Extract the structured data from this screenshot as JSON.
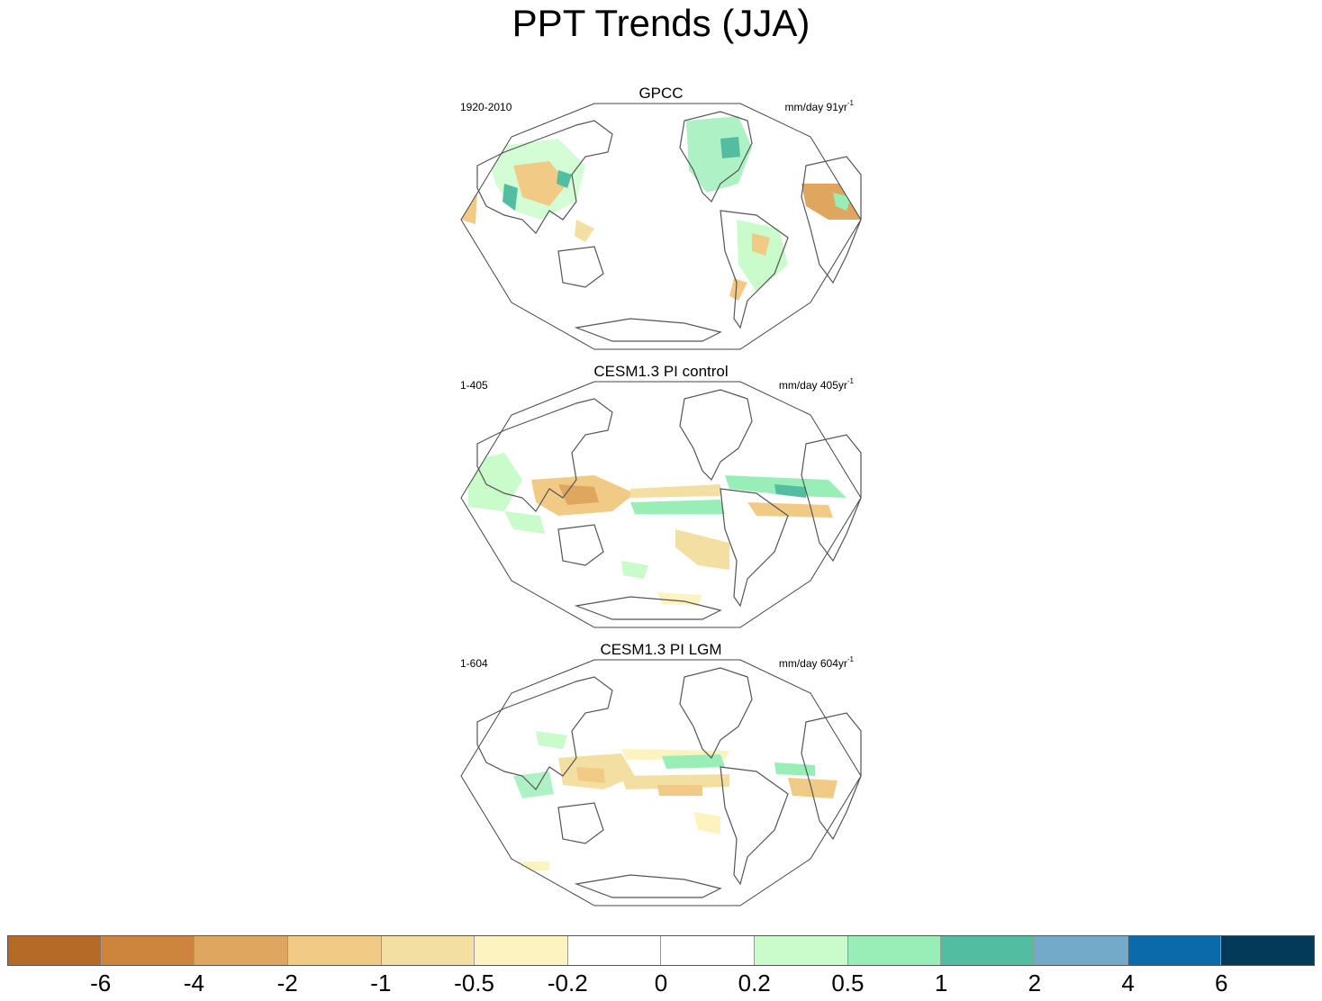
{
  "title": "PPT Trends (JJA)",
  "panels": [
    {
      "title": "GPCC",
      "period": "1920-2010",
      "units": "mm/day 91yr",
      "units_sup": "-1"
    },
    {
      "title": "CESM1.3 PI control",
      "period": "1-405",
      "units": "mm/day 405yr",
      "units_sup": "-1"
    },
    {
      "title": "CESM1.3 PI LGM",
      "period": "1-604",
      "units": "mm/day 604yr",
      "units_sup": "-1"
    }
  ],
  "colorbar": {
    "colors": [
      "#b56a28",
      "#cd853e",
      "#dfa65f",
      "#f1cb86",
      "#f3dfa1",
      "#fdf3c0",
      "#ffffff",
      "#ffffff",
      "#c9fbcb",
      "#98eeb6",
      "#52bda0",
      "#73a9c9",
      "#0a6aaa",
      "#033a5a"
    ],
    "labels": [
      "-6",
      "-4",
      "-2",
      "-1",
      "-0.5",
      "-0.2",
      "0",
      "0.2",
      "0.5",
      "1",
      "2",
      "4",
      "6"
    ]
  }
}
